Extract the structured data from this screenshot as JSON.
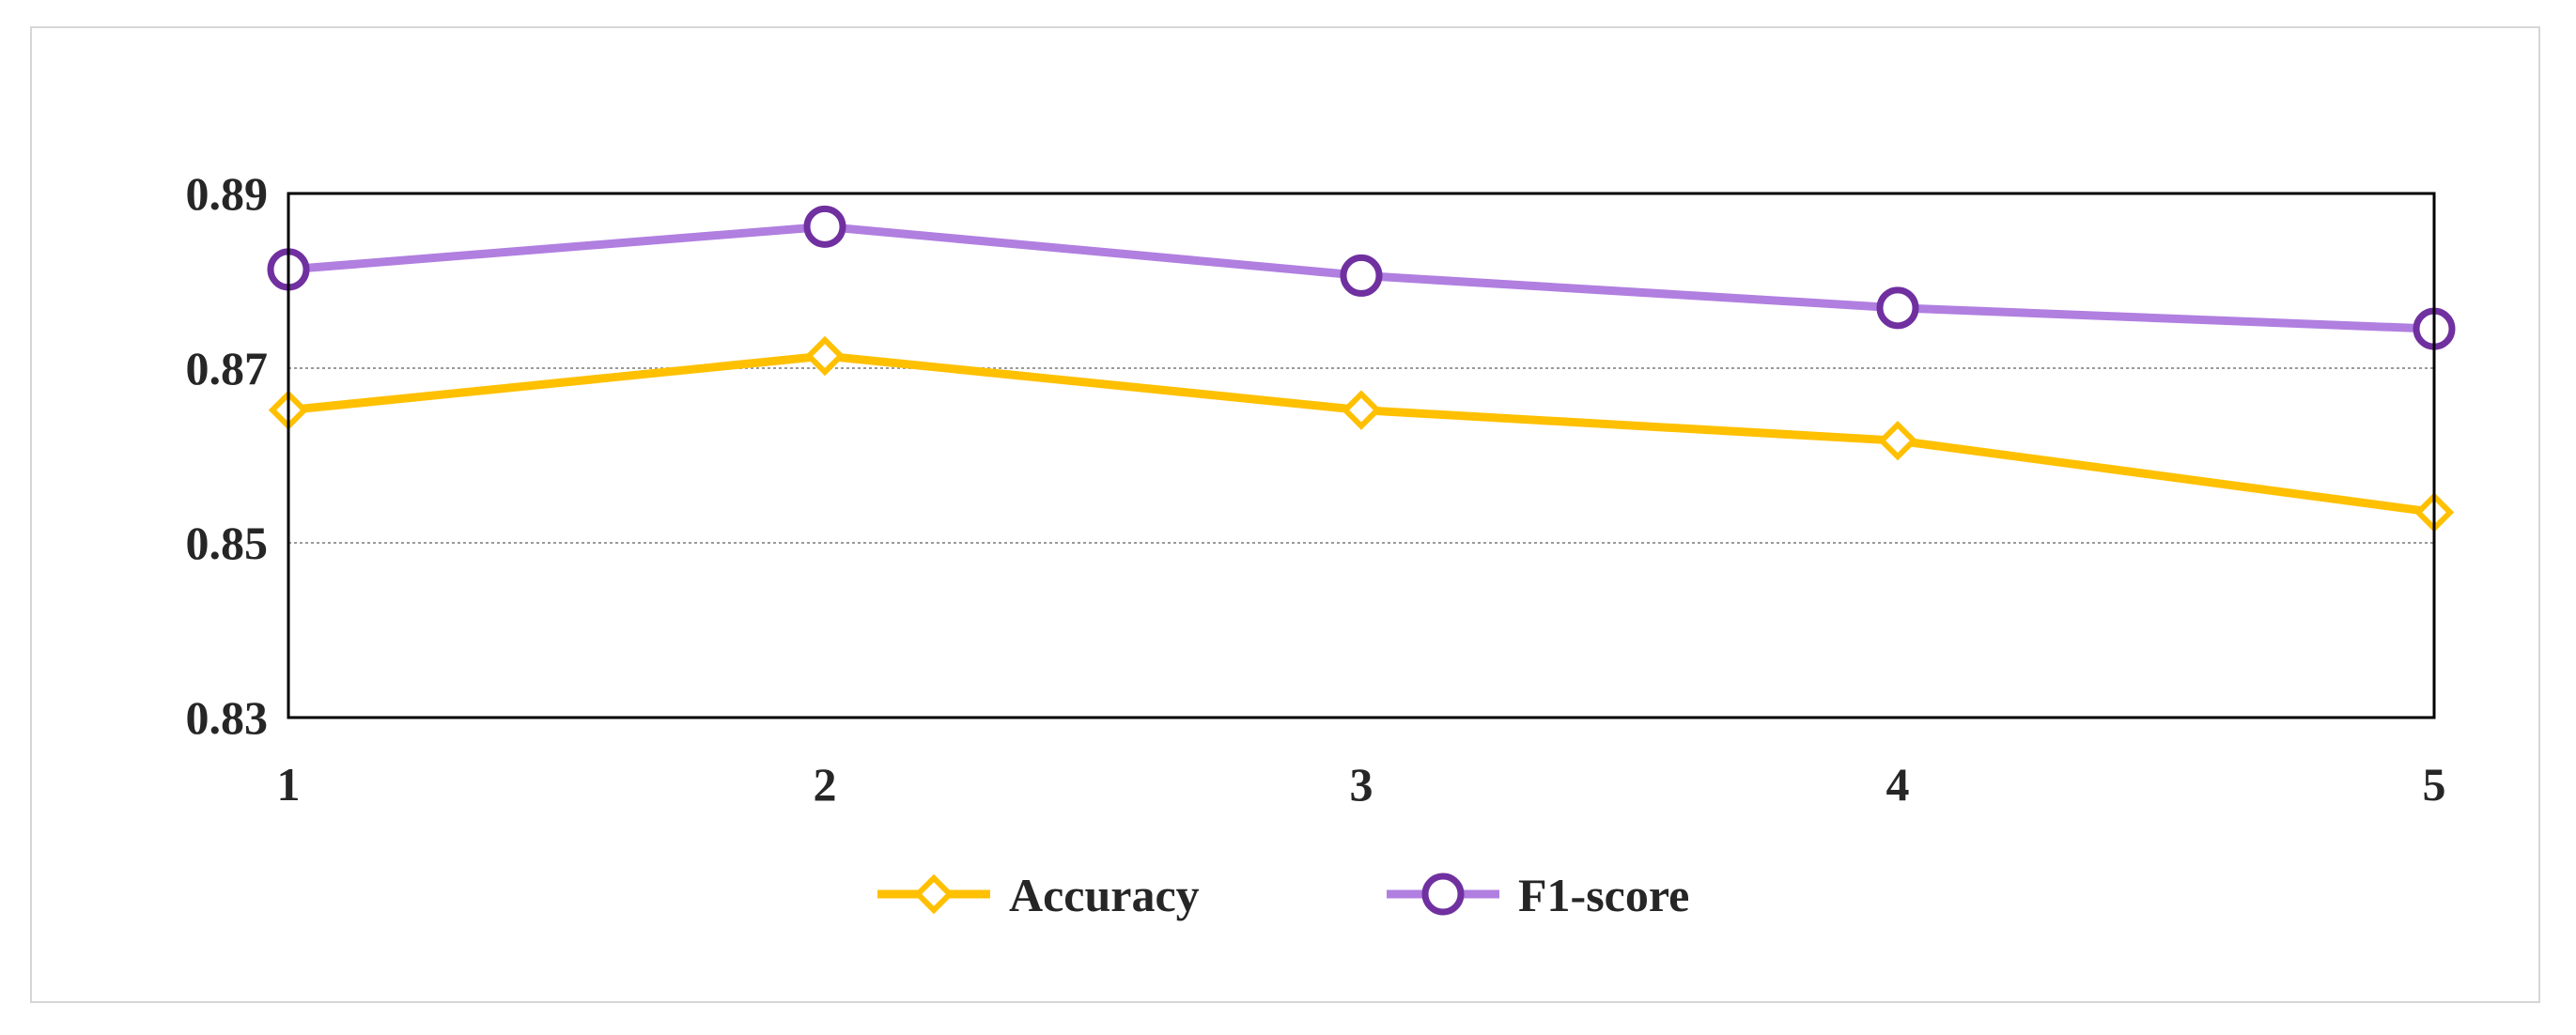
{
  "chart_data": {
    "type": "line",
    "x": [
      1,
      2,
      3,
      4,
      5
    ],
    "x_tick_labels": [
      "1",
      "2",
      "3",
      "4",
      "5"
    ],
    "y_tick_labels": [
      "0.83",
      "0.85",
      "0.87",
      "0.89"
    ],
    "ylim": [
      0.83,
      0.89
    ],
    "grid": true,
    "legend_position": "bottom",
    "series": [
      {
        "name": "Accuracy",
        "values": [
          0.8652,
          0.8714,
          0.8652,
          0.8617,
          0.8535
        ],
        "color": "#ffc000",
        "marker": "diamond"
      },
      {
        "name": "F1-score",
        "values": [
          0.8813,
          0.8862,
          0.8806,
          0.8769,
          0.8745
        ],
        "color": "#b07fe0",
        "marker_color": "#7030a0",
        "marker": "circle"
      }
    ]
  }
}
